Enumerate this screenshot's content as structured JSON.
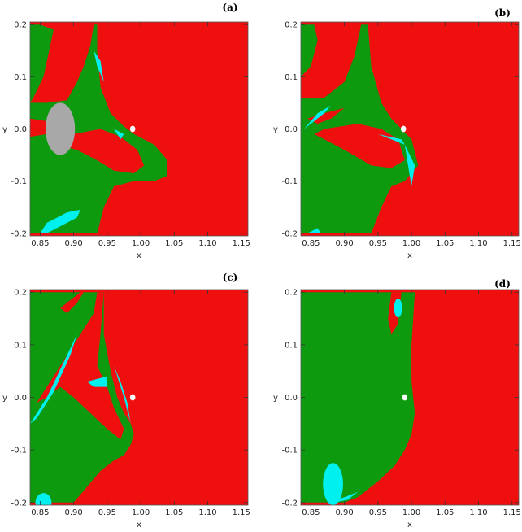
{
  "colors": {
    "red": "#f00f0f",
    "green": "#0e9a0e",
    "cyan": "#00f0f0",
    "gray": "#a8a8a8",
    "white": "#ffffff"
  },
  "chart_data": [
    {
      "type": "heatmap",
      "panel": "(a)",
      "xlabel": "x",
      "ylabel": "y",
      "xlim": [
        0.835,
        1.16
      ],
      "ylim": [
        -0.205,
        0.205
      ],
      "xticks": [
        "0.85",
        "0.90",
        "0.95",
        "1.00",
        "1.05",
        "1.10",
        "1.15"
      ],
      "yticks": [
        "0.2",
        "0.1",
        "0.0",
        "-0.1",
        "-0.2"
      ],
      "regions": [
        {
          "color": "green",
          "poly": [
            [
              0.835,
              0.2
            ],
            [
              0.85,
              0.2
            ],
            [
              0.87,
              0.19
            ],
            [
              0.855,
              0.1
            ],
            [
              0.84,
              0.06
            ],
            [
              0.835,
              0.05
            ]
          ]
        },
        {
          "color": "green",
          "poly": [
            [
              0.835,
              0.05
            ],
            [
              0.86,
              0.05
            ],
            [
              0.89,
              0.055
            ],
            [
              0.905,
              0.09
            ],
            [
              0.915,
              0.12
            ],
            [
              0.925,
              0.16
            ],
            [
              0.93,
              0.2
            ],
            [
              0.935,
              0.2
            ],
            [
              0.935,
              0.15
            ],
            [
              0.94,
              0.08
            ],
            [
              0.955,
              0.03
            ],
            [
              0.975,
              0.005
            ],
            [
              0.99,
              -0.01
            ],
            [
              1.02,
              -0.03
            ],
            [
              1.04,
              -0.06
            ],
            [
              1.04,
              -0.09
            ],
            [
              1.02,
              -0.1
            ],
            [
              0.99,
              -0.1
            ],
            [
              0.96,
              -0.11
            ],
            [
              0.945,
              -0.15
            ],
            [
              0.935,
              -0.2
            ],
            [
              0.835,
              -0.2
            ]
          ]
        },
        {
          "color": "red",
          "poly": [
            [
              0.9,
              -0.01
            ],
            [
              0.94,
              -0.0
            ],
            [
              0.97,
              -0.015
            ],
            [
              0.995,
              -0.04
            ],
            [
              1.005,
              -0.07
            ],
            [
              0.99,
              -0.085
            ],
            [
              0.96,
              -0.08
            ],
            [
              0.935,
              -0.06
            ],
            [
              0.905,
              -0.04
            ],
            [
              0.875,
              -0.03
            ],
            [
              0.86,
              -0.02
            ]
          ]
        },
        {
          "color": "red",
          "poly": [
            [
              0.835,
              0.02
            ],
            [
              0.86,
              0.015
            ],
            [
              0.88,
              0.0
            ],
            [
              0.86,
              -0.01
            ],
            [
              0.835,
              -0.015
            ]
          ]
        },
        {
          "color": "gray",
          "ellipse": [
            0.88,
            0.0,
            0.022,
            0.05
          ]
        },
        {
          "color": "cyan",
          "poly": [
            [
              0.85,
              -0.2
            ],
            [
              0.86,
              -0.18
            ],
            [
              0.89,
              -0.16
            ],
            [
              0.91,
              -0.155
            ],
            [
              0.905,
              -0.17
            ],
            [
              0.875,
              -0.19
            ],
            [
              0.86,
              -0.2
            ]
          ]
        },
        {
          "color": "cyan",
          "poly": [
            [
              0.93,
              0.15
            ],
            [
              0.935,
              0.12
            ],
            [
              0.945,
              0.09
            ],
            [
              0.94,
              0.13
            ]
          ]
        },
        {
          "color": "cyan",
          "poly": [
            [
              0.96,
              0.0
            ],
            [
              0.975,
              -0.01
            ],
            [
              0.97,
              -0.02
            ]
          ]
        },
        {
          "color": "white",
          "ellipse": [
            0.988,
            0.0,
            0.004,
            0.006
          ]
        }
      ]
    },
    {
      "type": "heatmap",
      "panel": "(b)",
      "xlabel": "x",
      "ylabel": "y",
      "xlim": [
        0.835,
        1.16
      ],
      "ylim": [
        -0.205,
        0.205
      ],
      "xticks": [
        "0.85",
        "0.90",
        "0.95",
        "1.00",
        "1.05",
        "1.10",
        "1.15"
      ],
      "yticks": [
        "0.2",
        "0.1",
        "0.0",
        "-0.1",
        "-0.2"
      ],
      "regions": [
        {
          "color": "green",
          "poly": [
            [
              0.835,
              0.2
            ],
            [
              0.855,
              0.2
            ],
            [
              0.86,
              0.17
            ],
            [
              0.85,
              0.12
            ],
            [
              0.835,
              0.1
            ]
          ]
        },
        {
          "color": "green",
          "poly": [
            [
              0.835,
              0.06
            ],
            [
              0.87,
              0.06
            ],
            [
              0.9,
              0.09
            ],
            [
              0.915,
              0.14
            ],
            [
              0.925,
              0.2
            ],
            [
              0.935,
              0.2
            ],
            [
              0.94,
              0.12
            ],
            [
              0.955,
              0.05
            ],
            [
              0.97,
              0.02
            ],
            [
              0.985,
              0.0
            ],
            [
              1.0,
              -0.02
            ],
            [
              1.01,
              -0.07
            ],
            [
              0.99,
              -0.1
            ],
            [
              0.97,
              -0.11
            ],
            [
              0.955,
              -0.15
            ],
            [
              0.94,
              -0.2
            ],
            [
              0.835,
              -0.2
            ]
          ]
        },
        {
          "color": "red",
          "poly": [
            [
              0.87,
              0.0
            ],
            [
              0.92,
              0.01
            ],
            [
              0.955,
              0.0
            ],
            [
              0.98,
              -0.02
            ],
            [
              0.99,
              -0.06
            ],
            [
              0.97,
              -0.075
            ],
            [
              0.94,
              -0.07
            ],
            [
              0.9,
              -0.04
            ],
            [
              0.87,
              -0.02
            ],
            [
              0.855,
              -0.01
            ]
          ]
        },
        {
          "color": "red",
          "poly": [
            [
              0.845,
              0.02
            ],
            [
              0.87,
              0.03
            ],
            [
              0.9,
              0.04
            ],
            [
              0.88,
              0.02
            ],
            [
              0.86,
              0.01
            ]
          ]
        },
        {
          "color": "cyan",
          "poly": [
            [
              0.84,
              0.0
            ],
            [
              0.86,
              0.03
            ],
            [
              0.88,
              0.045
            ],
            [
              0.87,
              0.03
            ],
            [
              0.85,
              0.01
            ]
          ]
        },
        {
          "color": "cyan",
          "poly": [
            [
              0.95,
              -0.01
            ],
            [
              0.985,
              -0.02
            ],
            [
              0.99,
              -0.03
            ],
            [
              0.96,
              -0.015
            ]
          ]
        },
        {
          "color": "cyan",
          "poly": [
            [
              0.99,
              -0.03
            ],
            [
              1.005,
              -0.07
            ],
            [
              1.0,
              -0.11
            ],
            [
              0.995,
              -0.07
            ]
          ]
        },
        {
          "color": "cyan",
          "poly": [
            [
              0.845,
              -0.2
            ],
            [
              0.86,
              -0.19
            ],
            [
              0.865,
              -0.2
            ]
          ]
        },
        {
          "color": "white",
          "ellipse": [
            0.988,
            0.0,
            0.004,
            0.006
          ]
        }
      ]
    },
    {
      "type": "heatmap",
      "panel": "(c)",
      "xlabel": "x",
      "ylabel": "y",
      "xlim": [
        0.835,
        1.16
      ],
      "ylim": [
        -0.205,
        0.205
      ],
      "xticks": [
        "0.85",
        "0.90",
        "0.95",
        "1.00",
        "1.05",
        "1.10",
        "1.15"
      ],
      "yticks": [
        "0.2",
        "0.1",
        "0.0",
        "-0.1",
        "-0.2"
      ],
      "regions": [
        {
          "color": "green",
          "poly": [
            [
              0.835,
              0.2
            ],
            [
              0.945,
              0.2
            ],
            [
              0.945,
              0.12
            ],
            [
              0.955,
              0.05
            ],
            [
              0.965,
              0.0
            ],
            [
              0.975,
              -0.03
            ],
            [
              0.985,
              -0.05
            ],
            [
              0.99,
              -0.07
            ],
            [
              0.985,
              -0.09
            ],
            [
              0.975,
              -0.11
            ],
            [
              0.96,
              -0.12
            ],
            [
              0.94,
              -0.14
            ],
            [
              0.92,
              -0.17
            ],
            [
              0.9,
              -0.2
            ],
            [
              0.835,
              -0.2
            ]
          ]
        },
        {
          "color": "red",
          "poly": [
            [
              0.86,
              0.02
            ],
            [
              0.9,
              0.1
            ],
            [
              0.93,
              0.16
            ],
            [
              0.935,
              0.2
            ],
            [
              0.945,
              0.2
            ],
            [
              0.94,
              0.12
            ],
            [
              0.935,
              0.06
            ],
            [
              0.95,
              0.02
            ],
            [
              0.96,
              -0.02
            ],
            [
              0.975,
              -0.06
            ],
            [
              0.97,
              -0.08
            ],
            [
              0.95,
              -0.06
            ],
            [
              0.925,
              -0.03
            ],
            [
              0.9,
              0.0
            ],
            [
              0.88,
              0.02
            ],
            [
              0.86,
              0.0
            ],
            [
              0.845,
              -0.01
            ]
          ]
        },
        {
          "color": "red",
          "poly": [
            [
              0.88,
              0.17
            ],
            [
              0.9,
              0.19
            ],
            [
              0.91,
              0.2
            ],
            [
              0.915,
              0.2
            ],
            [
              0.905,
              0.18
            ],
            [
              0.89,
              0.16
            ]
          ]
        },
        {
          "color": "cyan",
          "poly": [
            [
              0.92,
              0.03
            ],
            [
              0.95,
              0.04
            ],
            [
              0.95,
              0.02
            ],
            [
              0.93,
              0.02
            ]
          ]
        },
        {
          "color": "cyan",
          "poly": [
            [
              0.835,
              -0.05
            ],
            [
              0.86,
              0.0
            ],
            [
              0.89,
              0.08
            ],
            [
              0.905,
              0.12
            ],
            [
              0.895,
              0.08
            ],
            [
              0.87,
              0.01
            ],
            [
              0.845,
              -0.04
            ]
          ]
        },
        {
          "color": "cyan",
          "poly": [
            [
              0.96,
              0.06
            ],
            [
              0.975,
              0.0
            ],
            [
              0.985,
              -0.05
            ],
            [
              0.98,
              -0.01
            ],
            [
              0.97,
              0.03
            ]
          ]
        },
        {
          "color": "cyan",
          "ellipse": [
            0.855,
            -0.2,
            0.012,
            0.018
          ]
        },
        {
          "color": "white",
          "ellipse": [
            0.988,
            0.0,
            0.004,
            0.006
          ]
        }
      ]
    },
    {
      "type": "heatmap",
      "panel": "(d)",
      "xlabel": "x",
      "ylabel": "y",
      "xlim": [
        0.835,
        1.16
      ],
      "ylim": [
        -0.205,
        0.205
      ],
      "xticks": [
        "0.85",
        "0.90",
        "0.95",
        "1.00",
        "1.05",
        "1.10",
        "1.15"
      ],
      "yticks": [
        "0.2",
        "0.1",
        "0.0",
        "-0.1",
        "-0.2"
      ],
      "regions": [
        {
          "color": "green",
          "poly": [
            [
              0.835,
              0.2
            ],
            [
              1.005,
              0.2
            ],
            [
              1.0,
              0.1
            ],
            [
              1.0,
              0.03
            ],
            [
              1.005,
              -0.03
            ],
            [
              1.0,
              -0.07
            ],
            [
              0.99,
              -0.1
            ],
            [
              0.975,
              -0.13
            ],
            [
              0.95,
              -0.16
            ],
            [
              0.92,
              -0.19
            ],
            [
              0.9,
              -0.2
            ],
            [
              0.835,
              -0.2
            ]
          ]
        },
        {
          "color": "red",
          "poly": [
            [
              0.97,
              0.2
            ],
            [
              0.985,
              0.2
            ],
            [
              0.98,
              0.14
            ],
            [
              0.97,
              0.12
            ],
            [
              0.965,
              0.15
            ]
          ]
        },
        {
          "color": "cyan",
          "ellipse": [
            0.98,
            0.17,
            0.006,
            0.018
          ]
        },
        {
          "color": "cyan",
          "ellipse": [
            0.883,
            -0.165,
            0.015,
            0.04
          ]
        },
        {
          "color": "cyan",
          "poly": [
            [
              0.875,
              -0.2
            ],
            [
              0.9,
              -0.19
            ],
            [
              0.92,
              -0.18
            ],
            [
              0.905,
              -0.195
            ],
            [
              0.885,
              -0.2
            ]
          ]
        },
        {
          "color": "white",
          "ellipse": [
            0.99,
            0.0,
            0.004,
            0.006
          ]
        }
      ]
    }
  ]
}
